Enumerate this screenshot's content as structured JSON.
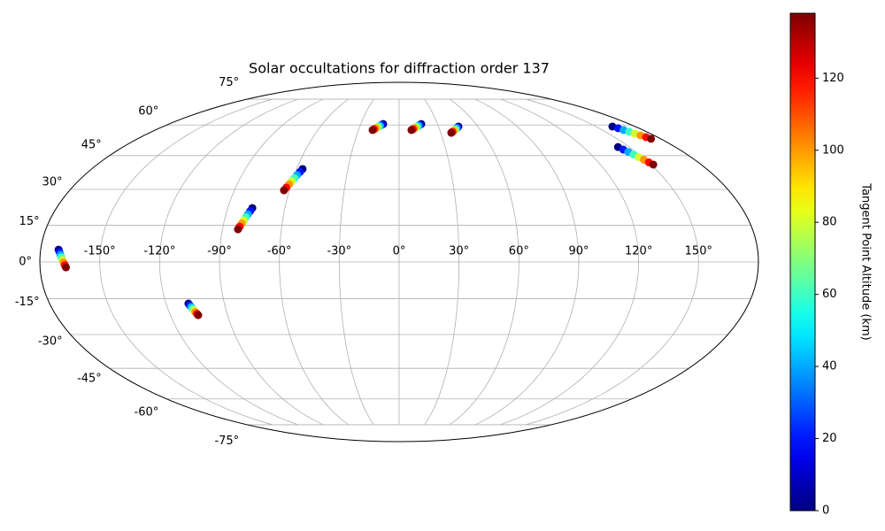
{
  "chart_data": {
    "type": "scatter",
    "projection": "mollweide",
    "title": "Solar occultations for diffraction order 137",
    "xticks": [
      {
        "value": -150,
        "label": "-150°"
      },
      {
        "value": -120,
        "label": "-120°"
      },
      {
        "value": -90,
        "label": "-90°"
      },
      {
        "value": -60,
        "label": "-60°"
      },
      {
        "value": -30,
        "label": "-30°"
      },
      {
        "value": 0,
        "label": "0°"
      },
      {
        "value": 30,
        "label": "30°"
      },
      {
        "value": 60,
        "label": "60°"
      },
      {
        "value": 90,
        "label": "90°"
      },
      {
        "value": 120,
        "label": "120°"
      },
      {
        "value": 150,
        "label": "150°"
      }
    ],
    "yticks": [
      {
        "value": -75,
        "label": "-75°"
      },
      {
        "value": -60,
        "label": "-60°"
      },
      {
        "value": -45,
        "label": "-45°"
      },
      {
        "value": -30,
        "label": "-30°"
      },
      {
        "value": -15,
        "label": "-15°"
      },
      {
        "value": 0,
        "label": "0°"
      },
      {
        "value": 15,
        "label": "15°"
      },
      {
        "value": 30,
        "label": "30°"
      },
      {
        "value": 45,
        "label": "45°"
      },
      {
        "value": 60,
        "label": "60°"
      },
      {
        "value": 75,
        "label": "75°"
      }
    ],
    "grid": true,
    "colorbar": {
      "label": "Tangent Point Altitude (km)",
      "cmap": "jet",
      "lim": [
        0,
        138
      ],
      "ticks": [
        0,
        20,
        40,
        60,
        80,
        100,
        120
      ]
    },
    "series": [
      {
        "lon": [
          -171,
          -170.4,
          -169.8,
          -169.3,
          -168.7,
          -168.1,
          -167.5,
          -167
        ],
        "lat": [
          5,
          4.0,
          2.9,
          1.9,
          0.8,
          -0.2,
          -1.3,
          -2.2
        ],
        "values": [
          0,
          20,
          40,
          60,
          80,
          100,
          120,
          138
        ]
      },
      {
        "lon": [
          -108.5,
          -108.1,
          -107.6,
          -107.2,
          -106.7,
          -106.3,
          -105.8,
          -105.4
        ],
        "lat": [
          -17,
          -17.7,
          -18.4,
          -19.1,
          -19.8,
          -20.5,
          -21.2,
          -21.8
        ],
        "values": [
          0,
          20,
          40,
          60,
          80,
          100,
          120,
          138
        ]
      },
      {
        "lon": [
          -77.1,
          -77.8,
          -78.6,
          -79.3,
          -80,
          -80.7,
          -81.5,
          -82.1
        ],
        "lat": [
          22.1,
          20.8,
          19.5,
          18.3,
          17,
          15.7,
          14.4,
          13.3
        ],
        "values": [
          0,
          20,
          40,
          60,
          80,
          100,
          120,
          138
        ]
      },
      {
        "lon": [
          -56.5,
          -57.4,
          -58.4,
          -59.3,
          -60.2,
          -61.1,
          -62.1,
          -62.9
        ],
        "lat": [
          38.9,
          37.6,
          36.2,
          34.9,
          33.5,
          32.2,
          30.8,
          29.6
        ],
        "values": [
          0,
          20,
          40,
          60,
          80,
          100,
          120,
          138
        ]
      },
      {
        "lon": [
          -12.5,
          -13.5,
          -14.6,
          -15.6,
          -16.6,
          -17.6,
          -18.7,
          -19.6
        ],
        "lat": [
          60.5,
          60.1,
          59.6,
          59.2,
          58.7,
          58.3,
          57.8,
          57.4
        ],
        "values": [
          0,
          20,
          40,
          60,
          80,
          100,
          120,
          138
        ]
      },
      {
        "lon": [
          17.3,
          16.1,
          14.9,
          13.7,
          12.5,
          11.4,
          10.2,
          9.1
        ],
        "lat": [
          60.5,
          60.1,
          59.6,
          59.2,
          58.7,
          58.3,
          57.8,
          57.4
        ],
        "values": [
          0,
          20,
          40,
          60,
          80,
          100,
          120,
          138
        ]
      },
      {
        "lon": [
          45.2,
          44.1,
          43,
          41.9,
          40.8,
          39.7,
          38.6,
          37.6
        ],
        "lat": [
          59.2,
          58.7,
          58.3,
          57.8,
          57.3,
          56.9,
          56.4,
          56
        ],
        "values": [
          0,
          20,
          40,
          60,
          80,
          100,
          120,
          138
        ]
      },
      {
        "lon": [
          162.6,
          164.2,
          165.7,
          167.3,
          168.8,
          170.4,
          171.9,
          173.3
        ],
        "lat": [
          59.2,
          58.3,
          57.4,
          56.5,
          55.6,
          54.7,
          53.8,
          53
        ],
        "values": [
          0,
          20,
          40,
          60,
          80,
          100,
          120,
          138
        ]
      },
      {
        "lon": [
          142.6,
          143.9,
          145.2,
          146.5,
          147.8,
          149.1,
          150.3,
          151.5
        ],
        "lat": [
          49,
          47.8,
          46.7,
          45.5,
          44.3,
          43.1,
          41.9,
          40.9
        ],
        "values": [
          0,
          20,
          40,
          60,
          80,
          100,
          120,
          138
        ]
      }
    ]
  }
}
